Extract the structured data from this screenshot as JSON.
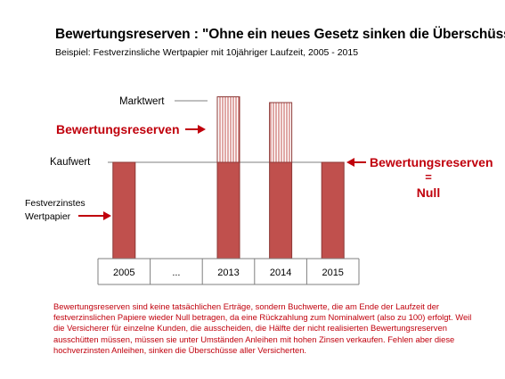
{
  "header": {
    "title": "Bewertungsreserven : \"Ohne ein neues Gesetz sinken die Überschüsse“",
    "subtitle": "Beispiel: Festverzinsliche Wertpapier mit 10jähriger Laufzeit, 2005 - 2015"
  },
  "colors": {
    "bar": "#c0504d",
    "bar_stroke": "#8c3836",
    "reserve_hatch": "#c0504d",
    "accent_text": "#c0000c",
    "line": "#7f7f7f"
  },
  "chart_data": {
    "type": "bar",
    "categories": [
      "2005",
      "...",
      "2013",
      "2014",
      "2015"
    ],
    "series": [
      {
        "values": [
          1,
          null,
          1,
          1,
          1
        ]
      },
      {
        "values": [
          0,
          null,
          0.68,
          0.62,
          0
        ]
      }
    ],
    "ylim": [
      0,
      1.68
    ],
    "grid": false,
    "annotations": {
      "marktwert": "Marktwert",
      "reserve_label": "Bewertungsreserven",
      "kaufwert": "Kaufwert",
      "festverzinstes_line1": "Festverzinstes",
      "festverzinstes_line2": "Wertpapier",
      "right_label": "Bewertungsreserven",
      "equals": "=",
      "null_label": "Null"
    }
  },
  "caption": "Bewertungsreserven sind keine tatsächlichen Erträge, sondern Buchwerte, die am Ende der Laufzeit der festverzinslichen Papiere wieder Null betragen, da eine Rückzahlung zum Nominalwert (also zu 100) erfolgt. Weil die Versicherer für einzelne Kunden, die ausscheiden, die Hälfte der nicht realisierten Bewertungsreserven ausschütten müssen, müssen sie unter Umständen Anleihen mit hohen Zinsen verkaufen. Fehlen aber diese hochverzinsten Anleihen, sinken die Überschüsse aller Versicherten."
}
